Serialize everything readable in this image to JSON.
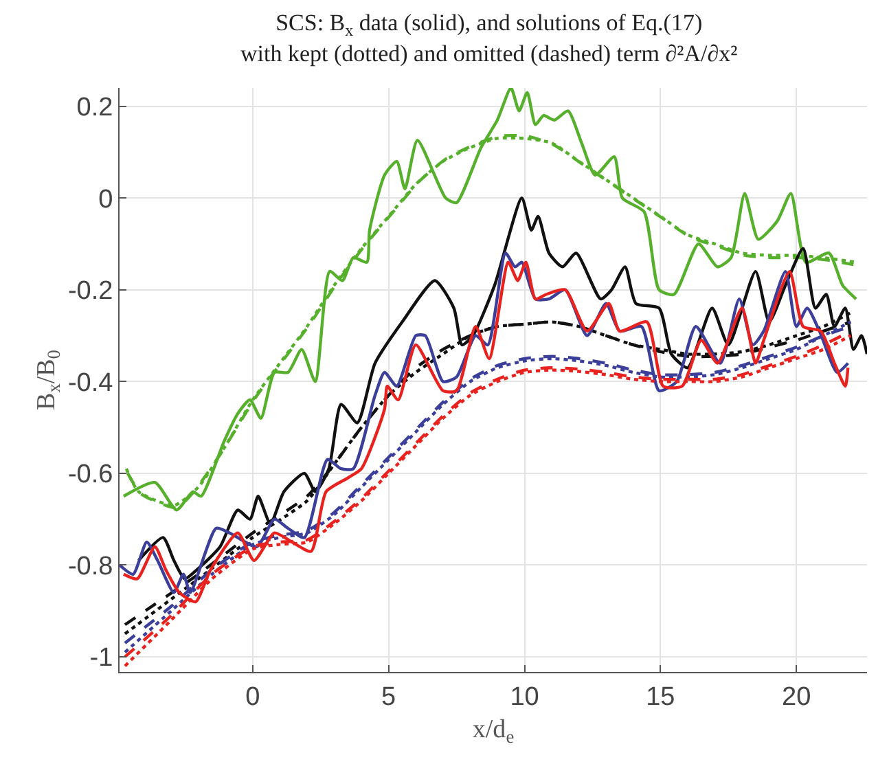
{
  "chart_data": {
    "type": "line",
    "title": "SCS: B$_{x}$ data (solid), and solutions of Eq.(17)",
    "subtitle": "with kept (dotted) and omitted (dashed) term ∂²A/∂x²",
    "xlabel": "x/d$_{e}$",
    "ylabel": "B$_{x}$/B$_{0}$",
    "xlim": [
      -4.9,
      22.6
    ],
    "ylim": [
      -1.033,
      0.24
    ],
    "xticks": [
      0,
      5,
      10,
      15,
      20
    ],
    "yticks": [
      -1,
      -0.8,
      -0.6,
      -0.4,
      -0.2,
      0,
      0.2
    ],
    "grid": true,
    "series": [
      {
        "color": "#56b02c",
        "line_style": "solid",
        "x": [
          -4.75,
          -3.6,
          -2.8,
          -2.2,
          -1.9,
          -1.05,
          -0.55,
          -0.1,
          0.3,
          0.8,
          1.3,
          1.8,
          2.3,
          2.83,
          3.3,
          3.7,
          4.2,
          4.3,
          4.85,
          5.3,
          5.6,
          6.06,
          7.1,
          7.5,
          8.4,
          9.0,
          9.5,
          9.8,
          10.1,
          10.4,
          10.7,
          11.1,
          11.6,
          12.1,
          12.6,
          13.3,
          13.6,
          14.4,
          14.95,
          15.5,
          16.4,
          17.1,
          17.6,
          18.1,
          18.6,
          19.3,
          19.8,
          20.35,
          21.2,
          21.7,
          22.2
        ],
        "values": [
          -0.65,
          -0.62,
          -0.68,
          -0.64,
          -0.65,
          -0.53,
          -0.47,
          -0.44,
          -0.48,
          -0.38,
          -0.38,
          -0.33,
          -0.4,
          -0.16,
          -0.18,
          -0.13,
          -0.14,
          -0.07,
          0.05,
          0.08,
          0.02,
          0.126,
          0.0,
          -0.01,
          0.11,
          0.17,
          0.24,
          0.19,
          0.23,
          0.16,
          0.18,
          0.17,
          0.19,
          0.12,
          0.05,
          0.09,
          0.0,
          -0.03,
          -0.2,
          -0.21,
          -0.1,
          -0.15,
          -0.13,
          0.01,
          -0.09,
          -0.05,
          0.01,
          -0.14,
          -0.12,
          -0.19,
          -0.22
        ]
      },
      {
        "color": "#56b02c",
        "line_style": "dotted",
        "x": [
          -4.65,
          -4.2,
          -2.9,
          -2,
          -1,
          0,
          1,
          2,
          3,
          4,
          5,
          6,
          7,
          8,
          9,
          10,
          11,
          12,
          13,
          14,
          15,
          16,
          17,
          18,
          19,
          20,
          21,
          22.2
        ],
        "values": [
          -0.59,
          -0.64,
          -0.67,
          -0.63,
          -0.54,
          -0.44,
          -0.36,
          -0.28,
          -0.19,
          -0.11,
          -0.04,
          0.03,
          0.08,
          0.11,
          0.13,
          0.13,
          0.12,
          0.08,
          0.04,
          0.0,
          -0.04,
          -0.08,
          -0.1,
          -0.12,
          -0.125,
          -0.125,
          -0.13,
          -0.14
        ]
      },
      {
        "color": "#56b02c",
        "line_style": "dashed",
        "x": [
          -4.6,
          -4.1,
          -2.8,
          -2.1,
          -1.1,
          0.1,
          1.1,
          2.1,
          3.1,
          4.1,
          5.1,
          6.1,
          7.1,
          8.1,
          9.1,
          10.1,
          11.1,
          12.1,
          13.1,
          14.1,
          15.1,
          16.1,
          17.1,
          18.1,
          19.1,
          20.1,
          21.1,
          22.1
        ],
        "values": [
          -0.6,
          -0.645,
          -0.675,
          -0.635,
          -0.55,
          -0.435,
          -0.355,
          -0.275,
          -0.185,
          -0.105,
          -0.035,
          0.035,
          0.085,
          0.115,
          0.135,
          0.135,
          0.115,
          0.075,
          0.035,
          -0.005,
          -0.045,
          -0.085,
          -0.105,
          -0.125,
          -0.13,
          -0.13,
          -0.135,
          -0.145
        ]
      },
      {
        "color": "#111111",
        "line_style": "solid",
        "x": [
          -4.2,
          -3.3,
          -2.9,
          -2.5,
          -2.05,
          -1.2,
          -0.55,
          -0.1,
          0.2,
          0.65,
          1.15,
          1.9,
          2.3,
          2.8,
          3.25,
          3.85,
          4.5,
          5.5,
          6.7,
          7.4,
          7.7,
          8.1,
          8.9,
          9.9,
          10.25,
          10.5,
          10.9,
          11.4,
          11.9,
          12.8,
          13.2,
          13.7,
          14.1,
          14.95,
          15.4,
          16.0,
          16.9,
          17.5,
          18.5,
          19.0,
          19.6,
          20.25,
          20.7,
          21.1,
          21.4,
          21.8,
          22.1,
          22.4,
          22.6
        ],
        "values": [
          -0.79,
          -0.74,
          -0.79,
          -0.83,
          -0.81,
          -0.76,
          -0.68,
          -0.7,
          -0.65,
          -0.71,
          -0.64,
          -0.6,
          -0.64,
          -0.59,
          -0.45,
          -0.49,
          -0.36,
          -0.27,
          -0.18,
          -0.24,
          -0.32,
          -0.3,
          -0.19,
          0.0,
          -0.07,
          -0.04,
          -0.12,
          -0.15,
          -0.12,
          -0.22,
          -0.2,
          -0.15,
          -0.23,
          -0.24,
          -0.34,
          -0.37,
          -0.24,
          -0.32,
          -0.16,
          -0.27,
          -0.19,
          -0.11,
          -0.24,
          -0.21,
          -0.28,
          -0.24,
          -0.33,
          -0.3,
          -0.34
        ]
      },
      {
        "color": "#111111",
        "line_style": "dotted",
        "x": [
          -4.7,
          -2,
          0,
          2,
          3,
          4,
          5,
          6,
          7,
          8,
          9,
          10,
          11,
          12,
          13,
          14,
          15,
          16,
          17,
          18,
          19,
          20,
          21,
          22
        ],
        "values": [
          -0.95,
          -0.83,
          -0.74,
          -0.66,
          -0.58,
          -0.5,
          -0.43,
          -0.38,
          -0.34,
          -0.3,
          -0.28,
          -0.275,
          -0.27,
          -0.28,
          -0.3,
          -0.32,
          -0.33,
          -0.34,
          -0.34,
          -0.335,
          -0.32,
          -0.3,
          -0.28,
          -0.25
        ]
      },
      {
        "color": "#111111",
        "line_style": "dashed",
        "x": [
          -4.7,
          -2,
          0,
          2,
          3,
          4,
          5,
          6,
          7,
          8,
          9,
          10,
          11,
          12,
          13,
          14,
          15,
          16,
          17,
          18,
          19,
          20,
          21,
          22
        ],
        "values": [
          -0.93,
          -0.82,
          -0.73,
          -0.65,
          -0.58,
          -0.5,
          -0.43,
          -0.37,
          -0.33,
          -0.3,
          -0.28,
          -0.275,
          -0.27,
          -0.28,
          -0.3,
          -0.32,
          -0.335,
          -0.345,
          -0.345,
          -0.34,
          -0.325,
          -0.31,
          -0.29,
          -0.27
        ]
      },
      {
        "color": "#3b3f99",
        "line_style": "solid",
        "x": [
          -4.9,
          -4.4,
          -3.9,
          -3.5,
          -2.9,
          -2.55,
          -2.3,
          -1.35,
          -0.85,
          0.15,
          0.8,
          1.3,
          1.9,
          2.75,
          3.25,
          3.7,
          4.5,
          4.85,
          5.3,
          6.0,
          6.35,
          7.0,
          7.5,
          8.2,
          8.65,
          9.3,
          9.65,
          9.9,
          10.4,
          10.9,
          11.5,
          12.3,
          13.0,
          13.5,
          14.3,
          14.95,
          15.6,
          16.3,
          17.2,
          17.9,
          18.4,
          18.8,
          19.6,
          20.0,
          20.4,
          20.85,
          21.5,
          21.9
        ],
        "values": [
          -0.8,
          -0.82,
          -0.75,
          -0.79,
          -0.86,
          -0.82,
          -0.86,
          -0.72,
          -0.73,
          -0.76,
          -0.7,
          -0.72,
          -0.74,
          -0.57,
          -0.59,
          -0.59,
          -0.43,
          -0.38,
          -0.41,
          -0.3,
          -0.3,
          -0.4,
          -0.39,
          -0.3,
          -0.32,
          -0.12,
          -0.15,
          -0.14,
          -0.22,
          -0.22,
          -0.2,
          -0.3,
          -0.23,
          -0.29,
          -0.28,
          -0.42,
          -0.4,
          -0.28,
          -0.36,
          -0.22,
          -0.32,
          -0.29,
          -0.16,
          -0.28,
          -0.24,
          -0.29,
          -0.38,
          -0.36
        ]
      },
      {
        "color": "#3b3f99",
        "line_style": "dotted",
        "x": [
          -4.7,
          -3,
          -1.5,
          0,
          1,
          2,
          3,
          4,
          5,
          6,
          7,
          8,
          9,
          10,
          11,
          12,
          13,
          14,
          15,
          16,
          17,
          18,
          19,
          20,
          21,
          22
        ],
        "values": [
          -0.99,
          -0.9,
          -0.82,
          -0.755,
          -0.74,
          -0.73,
          -0.69,
          -0.63,
          -0.57,
          -0.51,
          -0.45,
          -0.4,
          -0.37,
          -0.355,
          -0.35,
          -0.355,
          -0.365,
          -0.38,
          -0.39,
          -0.39,
          -0.385,
          -0.37,
          -0.35,
          -0.33,
          -0.3,
          -0.27
        ]
      },
      {
        "color": "#3b3f99",
        "line_style": "dashed",
        "x": [
          -4.7,
          -3,
          -1.5,
          0,
          1,
          2,
          3,
          4,
          5,
          6,
          7,
          8,
          9,
          10,
          11,
          12,
          13,
          14,
          15,
          16,
          17,
          18,
          19,
          20,
          21,
          22
        ],
        "values": [
          -0.97,
          -0.89,
          -0.81,
          -0.75,
          -0.735,
          -0.725,
          -0.685,
          -0.625,
          -0.565,
          -0.505,
          -0.445,
          -0.395,
          -0.365,
          -0.35,
          -0.345,
          -0.35,
          -0.36,
          -0.375,
          -0.385,
          -0.385,
          -0.38,
          -0.365,
          -0.345,
          -0.325,
          -0.3,
          -0.28
        ]
      },
      {
        "color": "#e8221e",
        "line_style": "solid",
        "x": [
          -4.75,
          -4.25,
          -3.6,
          -3.2,
          -2.7,
          -2.1,
          -1.55,
          -0.55,
          0.05,
          0.8,
          1.45,
          2.15,
          2.7,
          3.5,
          4.0,
          4.85,
          4.95,
          5.35,
          6.0,
          7.0,
          7.5,
          8.2,
          8.7,
          9.4,
          9.75,
          10.05,
          10.4,
          10.8,
          11.5,
          12.3,
          13.1,
          13.5,
          14.5,
          15.1,
          15.8,
          16.5,
          17.1,
          18.0,
          18.5,
          18.8,
          19.75,
          20.25,
          20.9,
          21.4,
          21.8,
          21.9
        ],
        "values": [
          -0.82,
          -0.83,
          -0.76,
          -0.81,
          -0.86,
          -0.88,
          -0.81,
          -0.73,
          -0.79,
          -0.73,
          -0.75,
          -0.77,
          -0.64,
          -0.61,
          -0.59,
          -0.46,
          -0.41,
          -0.44,
          -0.32,
          -0.42,
          -0.42,
          -0.28,
          -0.35,
          -0.14,
          -0.18,
          -0.14,
          -0.22,
          -0.21,
          -0.2,
          -0.29,
          -0.23,
          -0.29,
          -0.27,
          -0.41,
          -0.41,
          -0.31,
          -0.36,
          -0.24,
          -0.36,
          -0.31,
          -0.16,
          -0.28,
          -0.29,
          -0.36,
          -0.41,
          -0.37
        ]
      },
      {
        "color": "#e8221e",
        "line_style": "dotted",
        "x": [
          -4.7,
          -3,
          -1.5,
          0,
          1,
          2,
          3,
          4,
          5,
          6,
          7,
          8,
          9,
          10,
          11,
          12,
          13,
          14,
          15,
          16,
          17,
          18,
          19,
          20,
          21,
          22
        ],
        "values": [
          -1.02,
          -0.92,
          -0.83,
          -0.765,
          -0.755,
          -0.75,
          -0.71,
          -0.66,
          -0.6,
          -0.54,
          -0.48,
          -0.43,
          -0.4,
          -0.38,
          -0.375,
          -0.378,
          -0.385,
          -0.395,
          -0.4,
          -0.4,
          -0.4,
          -0.39,
          -0.37,
          -0.35,
          -0.33,
          -0.3
        ]
      },
      {
        "color": "#e8221e",
        "line_style": "dashed",
        "x": [
          -4.7,
          -3,
          -1.5,
          0,
          1,
          2,
          3,
          4,
          5,
          6,
          7,
          8,
          9,
          10,
          11,
          12,
          13,
          14,
          15,
          16,
          17,
          18,
          19,
          20,
          21,
          22
        ],
        "values": [
          -1.0,
          -0.91,
          -0.82,
          -0.76,
          -0.75,
          -0.745,
          -0.705,
          -0.655,
          -0.595,
          -0.535,
          -0.475,
          -0.425,
          -0.395,
          -0.375,
          -0.37,
          -0.373,
          -0.38,
          -0.39,
          -0.395,
          -0.395,
          -0.395,
          -0.385,
          -0.365,
          -0.345,
          -0.32,
          -0.29
        ]
      }
    ]
  }
}
